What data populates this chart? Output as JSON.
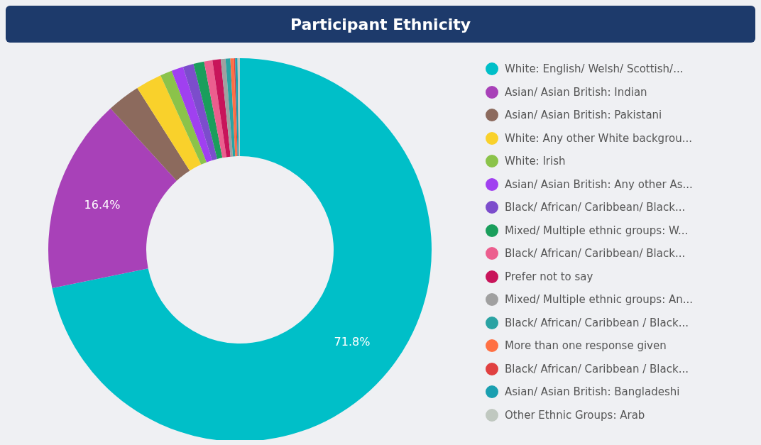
{
  "chart_data": {
    "type": "donut",
    "title": "Participant Ethnicity",
    "categories": [
      "White: English/ Welsh/ Scottish/...",
      "Asian/ Asian British: Indian",
      "Asian/ Asian British: Pakistani",
      "White: Any other White backgrou...",
      "White: Irish",
      "Asian/ Asian British: Any other As...",
      "Black/ African/ Caribbean/ Black...",
      "Mixed/ Multiple ethnic groups: W...",
      "Black/ African/ Caribbean/ Black...",
      "Prefer not to say",
      "Mixed/ Multiple ethnic groups: An...",
      "Black/ African/ Caribbean / Black...",
      "More than one response given",
      "Black/ African/ Caribbean / Black...",
      "Asian/ Asian British: Bangladeshi",
      "Other Ethnic Groups: Arab"
    ],
    "values": [
      71.8,
      16.4,
      2.8,
      2.2,
      1.0,
      1.0,
      0.9,
      0.9,
      0.7,
      0.7,
      0.4,
      0.4,
      0.3,
      0.1,
      0.2,
      0.2
    ],
    "value_labels": [
      "71.8%",
      "16.4%",
      null,
      null,
      null,
      null,
      null,
      null,
      null,
      null,
      null,
      null,
      null,
      null,
      null,
      null
    ],
    "colors": [
      "#00bfc8",
      "#a841b8",
      "#8c6a5d",
      "#f9d12b",
      "#8bc34a",
      "#a040f0",
      "#7c4dcc",
      "#1a9e5c",
      "#ec5e8e",
      "#c8145a",
      "#a0a0a0",
      "#2aa3a3",
      "#ff7043",
      "#e04040",
      "#1a9fb0",
      "#c0c8c0"
    ],
    "legend": "right"
  }
}
